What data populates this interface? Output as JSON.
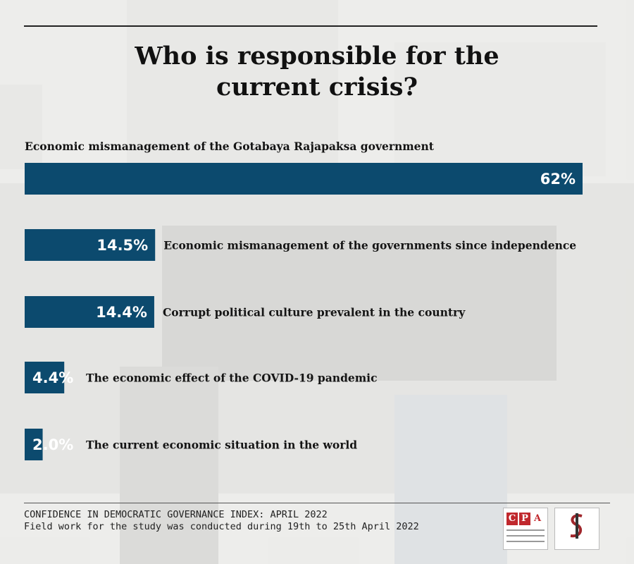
{
  "title_lines": [
    "Who is responsible for the",
    "current crisis?"
  ],
  "colors": {
    "bar": "#0c4a6e",
    "text": "#141414",
    "background": "#e9e9e7"
  },
  "chart_data": {
    "type": "bar",
    "orientation": "horizontal",
    "title": "Who is responsible for the current crisis?",
    "categories": [
      "Economic mismanagement of the Gotabaya Rajapaksa government",
      "Economic mismanagement of the governments since independence",
      "Corrupt political culture prevalent in the country",
      "The economic effect of the COVID-19 pandemic",
      "The current economic situation in the world"
    ],
    "values": [
      62,
      14.5,
      14.4,
      4.4,
      2.0
    ],
    "value_labels": [
      "62%",
      "14.5%",
      "14.4%",
      "4.4%",
      "2.0%"
    ],
    "xlim": [
      0,
      62
    ],
    "grid": false,
    "legend": "none"
  },
  "footer": {
    "line1": "CONFIDENCE IN DEMOCRATIC GOVERNANCE INDEX: APRIL 2022",
    "line2": "Field work for the study was conducted during 19th to 25th April 2022"
  },
  "logos": {
    "cpa_letters": [
      "C",
      "P",
      "A"
    ],
    "cpa_caption": "Centre for Policy Alternatives",
    "ssrc_caption": "Social Scientists' Association"
  }
}
